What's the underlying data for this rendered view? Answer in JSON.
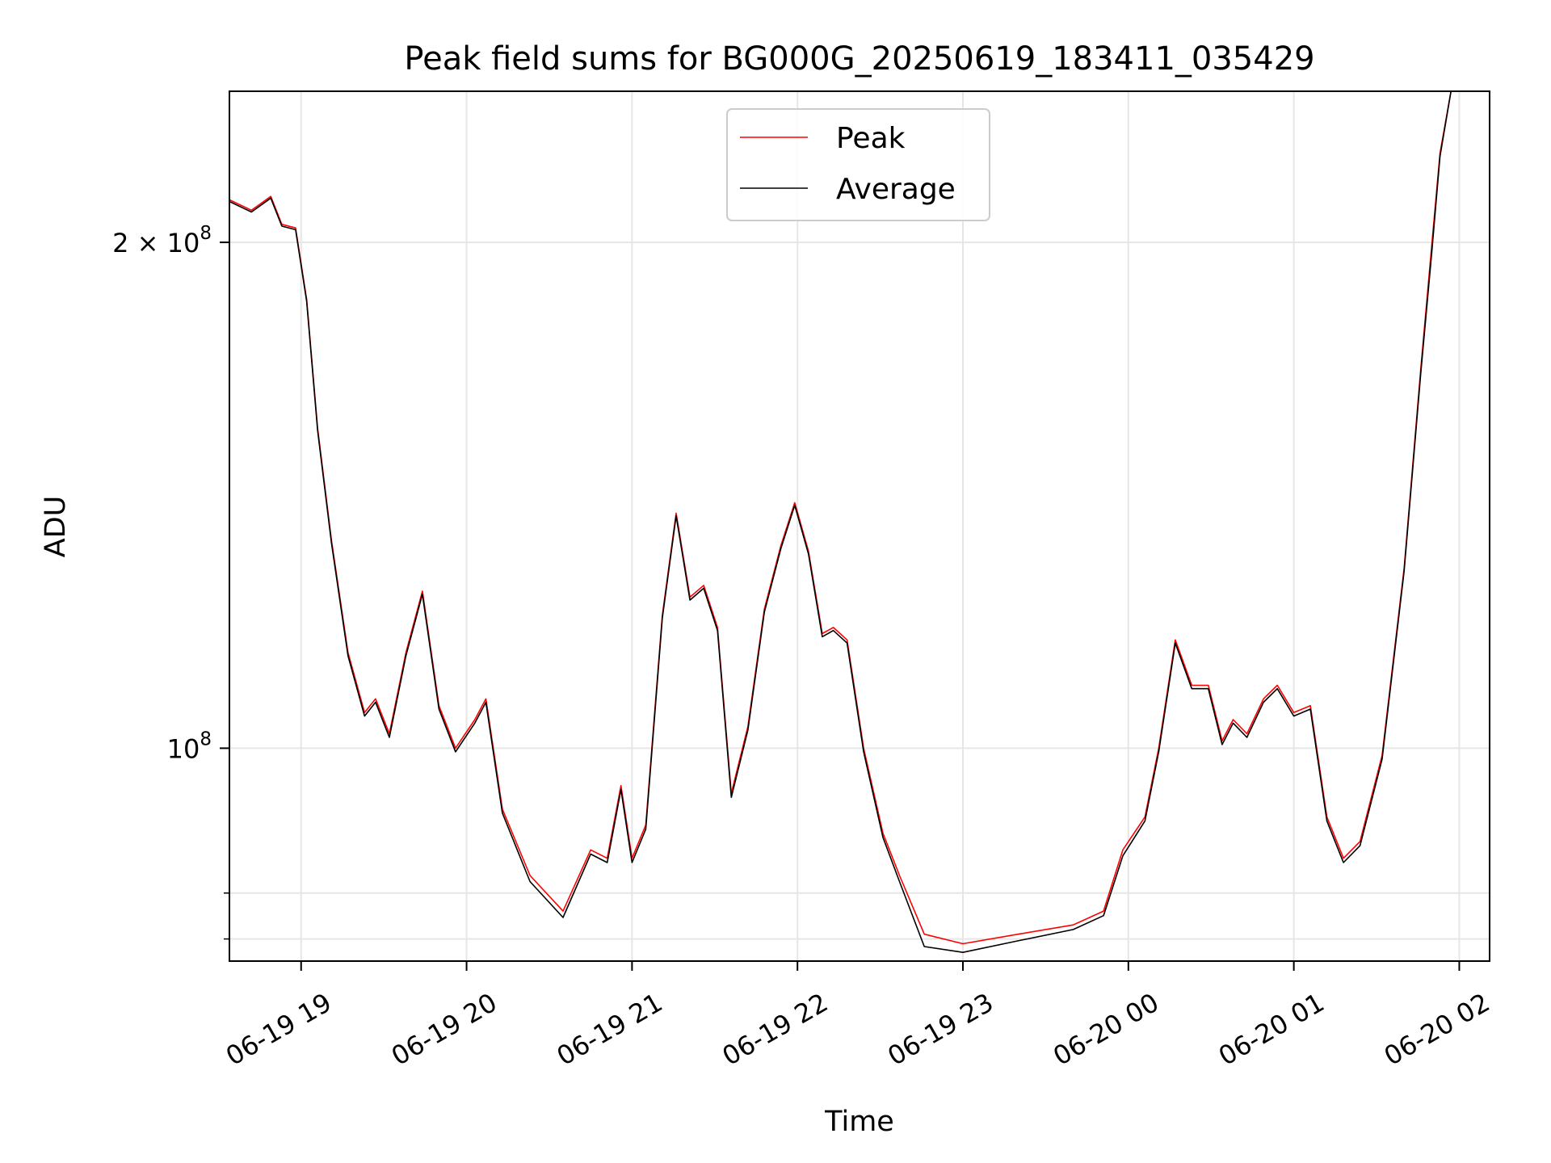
{
  "chart_data": {
    "type": "line",
    "title": "Peak field sums for BG000G_20250619_183411_035429",
    "xlabel": "Time",
    "ylabel": "ADU",
    "y_scale": "log",
    "xlim": [
      "2025-06-19 18:34",
      "2025-06-20 02:11"
    ],
    "ylim": [
      74700000,
      246000000
    ],
    "x_ticks": [
      {
        "label": "06-19 19",
        "time": "2025-06-19 19:00"
      },
      {
        "label": "06-19 20",
        "time": "2025-06-19 20:00"
      },
      {
        "label": "06-19 21",
        "time": "2025-06-19 21:00"
      },
      {
        "label": "06-19 22",
        "time": "2025-06-19 22:00"
      },
      {
        "label": "06-19 23",
        "time": "2025-06-19 23:00"
      },
      {
        "label": "06-20 00",
        "time": "2025-06-20 00:00"
      },
      {
        "label": "06-20 01",
        "time": "2025-06-20 01:00"
      },
      {
        "label": "06-20 02",
        "time": "2025-06-20 02:00"
      }
    ],
    "y_major_ticks": [
      {
        "value": 100000000,
        "base": "10",
        "exp": "8"
      },
      {
        "value": 200000000,
        "base": "2 × 10",
        "exp": "8"
      }
    ],
    "y_minor_ticks": [
      77000000,
      82000000
    ],
    "grid": true,
    "legend_position": "top-center",
    "series": [
      {
        "name": "Peak",
        "color": "#ff0000",
        "points": [
          [
            "2025-06-19 18:34",
            212
          ],
          [
            "2025-06-19 18:42",
            209
          ],
          [
            "2025-06-19 18:49",
            213
          ],
          [
            "2025-06-19 18:53",
            205
          ],
          [
            "2025-06-19 18:58",
            204
          ],
          [
            "2025-06-19 19:02",
            185
          ],
          [
            "2025-06-19 19:06",
            155
          ],
          [
            "2025-06-19 19:11",
            133
          ],
          [
            "2025-06-19 19:17",
            114
          ],
          [
            "2025-06-19 19:23",
            105
          ],
          [
            "2025-06-19 19:27",
            107
          ],
          [
            "2025-06-19 19:32",
            102
          ],
          [
            "2025-06-19 19:38",
            114
          ],
          [
            "2025-06-19 19:44",
            124
          ],
          [
            "2025-06-19 19:50",
            106
          ],
          [
            "2025-06-19 19:56",
            100
          ],
          [
            "2025-06-19 20:03",
            104
          ],
          [
            "2025-06-19 20:07",
            107
          ],
          [
            "2025-06-19 20:13",
            92
          ],
          [
            "2025-06-19 20:23",
            84
          ],
          [
            "2025-06-19 20:35",
            80
          ],
          [
            "2025-06-19 20:45",
            87
          ],
          [
            "2025-06-19 20:51",
            86
          ],
          [
            "2025-06-19 20:56",
            95
          ],
          [
            "2025-06-19 21:00",
            86
          ],
          [
            "2025-06-19 21:05",
            90
          ],
          [
            "2025-06-19 21:11",
            120
          ],
          [
            "2025-06-19 21:16",
            138
          ],
          [
            "2025-06-19 21:21",
            123
          ],
          [
            "2025-06-19 21:26",
            125
          ],
          [
            "2025-06-19 21:31",
            118
          ],
          [
            "2025-06-19 21:36",
            94
          ],
          [
            "2025-06-19 21:42",
            103
          ],
          [
            "2025-06-19 21:48",
            121
          ],
          [
            "2025-06-19 21:54",
            132
          ],
          [
            "2025-06-19 21:59",
            140
          ],
          [
            "2025-06-19 22:04",
            131
          ],
          [
            "2025-06-19 22:09",
            117
          ],
          [
            "2025-06-19 22:13",
            118
          ],
          [
            "2025-06-19 22:18",
            116
          ],
          [
            "2025-06-19 22:24",
            100
          ],
          [
            "2025-06-19 22:31",
            89
          ],
          [
            "2025-06-19 22:37",
            84
          ],
          [
            "2025-06-19 22:46",
            77.5
          ],
          [
            "2025-06-19 23:00",
            76.5
          ],
          [
            "2025-06-19 23:20",
            77.5
          ],
          [
            "2025-06-19 23:40",
            78.5
          ],
          [
            "2025-06-19 23:51",
            80
          ],
          [
            "2025-06-19 23:58",
            87
          ],
          [
            "2025-06-20 00:06",
            91
          ],
          [
            "2025-06-20 00:11",
            100
          ],
          [
            "2025-06-20 00:17",
            116
          ],
          [
            "2025-06-20 00:23",
            109
          ],
          [
            "2025-06-20 00:29",
            109
          ],
          [
            "2025-06-20 00:34",
            101
          ],
          [
            "2025-06-20 00:38",
            104
          ],
          [
            "2025-06-20 00:43",
            102
          ],
          [
            "2025-06-20 00:49",
            107
          ],
          [
            "2025-06-20 00:54",
            109
          ],
          [
            "2025-06-20 01:00",
            105
          ],
          [
            "2025-06-20 01:06",
            106
          ],
          [
            "2025-06-20 01:12",
            91
          ],
          [
            "2025-06-20 01:18",
            86
          ],
          [
            "2025-06-20 01:24",
            88
          ],
          [
            "2025-06-20 01:32",
            99
          ],
          [
            "2025-06-20 01:40",
            128
          ],
          [
            "2025-06-20 01:46",
            168
          ],
          [
            "2025-06-20 01:50",
            199
          ],
          [
            "2025-06-20 01:53",
            226
          ],
          [
            "2025-06-20 01:57",
            246
          ],
          [
            "2025-06-20 02:11",
            246
          ]
        ]
      },
      {
        "name": "Average",
        "color": "#000000",
        "points": [
          [
            "2025-06-19 18:34",
            211.5
          ],
          [
            "2025-06-19 18:42",
            208.5
          ],
          [
            "2025-06-19 18:49",
            212.5
          ],
          [
            "2025-06-19 18:53",
            204.5
          ],
          [
            "2025-06-19 18:58",
            203.5
          ],
          [
            "2025-06-19 19:02",
            184.5
          ],
          [
            "2025-06-19 19:06",
            154.5
          ],
          [
            "2025-06-19 19:11",
            132.5
          ],
          [
            "2025-06-19 19:17",
            113.5
          ],
          [
            "2025-06-19 19:23",
            104.5
          ],
          [
            "2025-06-19 19:27",
            106.5
          ],
          [
            "2025-06-19 19:32",
            101.5
          ],
          [
            "2025-06-19 19:38",
            113.5
          ],
          [
            "2025-06-19 19:44",
            123.5
          ],
          [
            "2025-06-19 19:50",
            105.5
          ],
          [
            "2025-06-19 19:56",
            99.5
          ],
          [
            "2025-06-19 20:03",
            103.5
          ],
          [
            "2025-06-19 20:07",
            106.5
          ],
          [
            "2025-06-19 20:13",
            91.5
          ],
          [
            "2025-06-19 20:23",
            83.3
          ],
          [
            "2025-06-19 20:35",
            79.3
          ],
          [
            "2025-06-19 20:45",
            86.5
          ],
          [
            "2025-06-19 20:51",
            85.5
          ],
          [
            "2025-06-19 20:56",
            94.5
          ],
          [
            "2025-06-19 21:00",
            85.5
          ],
          [
            "2025-06-19 21:05",
            89.5
          ],
          [
            "2025-06-19 21:11",
            119.5
          ],
          [
            "2025-06-19 21:16",
            137.5
          ],
          [
            "2025-06-19 21:21",
            122.5
          ],
          [
            "2025-06-19 21:26",
            124.5
          ],
          [
            "2025-06-19 21:31",
            117.5
          ],
          [
            "2025-06-19 21:36",
            93.5
          ],
          [
            "2025-06-19 21:42",
            102.5
          ],
          [
            "2025-06-19 21:48",
            120.5
          ],
          [
            "2025-06-19 21:54",
            131.5
          ],
          [
            "2025-06-19 21:59",
            139.5
          ],
          [
            "2025-06-19 22:04",
            130.5
          ],
          [
            "2025-06-19 22:09",
            116.5
          ],
          [
            "2025-06-19 22:13",
            117.5
          ],
          [
            "2025-06-19 22:18",
            115.5
          ],
          [
            "2025-06-19 22:24",
            99.5
          ],
          [
            "2025-06-19 22:31",
            88.5
          ],
          [
            "2025-06-19 22:37",
            83.3
          ],
          [
            "2025-06-19 22:46",
            76.2
          ],
          [
            "2025-06-19 23:00",
            75.6
          ],
          [
            "2025-06-19 23:20",
            76.8
          ],
          [
            "2025-06-19 23:40",
            78
          ],
          [
            "2025-06-19 23:51",
            79.5
          ],
          [
            "2025-06-19 23:58",
            86.3
          ],
          [
            "2025-06-20 00:06",
            90.5
          ],
          [
            "2025-06-20 00:11",
            99.5
          ],
          [
            "2025-06-20 00:17",
            115.5
          ],
          [
            "2025-06-20 00:23",
            108.5
          ],
          [
            "2025-06-20 00:29",
            108.5
          ],
          [
            "2025-06-20 00:34",
            100.5
          ],
          [
            "2025-06-20 00:38",
            103.5
          ],
          [
            "2025-06-20 00:43",
            101.5
          ],
          [
            "2025-06-20 00:49",
            106.5
          ],
          [
            "2025-06-20 00:54",
            108.5
          ],
          [
            "2025-06-20 01:00",
            104.5
          ],
          [
            "2025-06-20 01:06",
            105.5
          ],
          [
            "2025-06-20 01:12",
            90.5
          ],
          [
            "2025-06-20 01:18",
            85.5
          ],
          [
            "2025-06-20 01:24",
            87.5
          ],
          [
            "2025-06-20 01:32",
            98.5
          ],
          [
            "2025-06-20 01:40",
            127.5
          ],
          [
            "2025-06-20 01:46",
            167
          ],
          [
            "2025-06-20 01:50",
            197
          ],
          [
            "2025-06-20 01:53",
            225
          ],
          [
            "2025-06-20 01:57",
            246
          ],
          [
            "2025-06-20 02:11",
            246
          ]
        ]
      }
    ],
    "y_unit_multiplier": 1000000
  }
}
